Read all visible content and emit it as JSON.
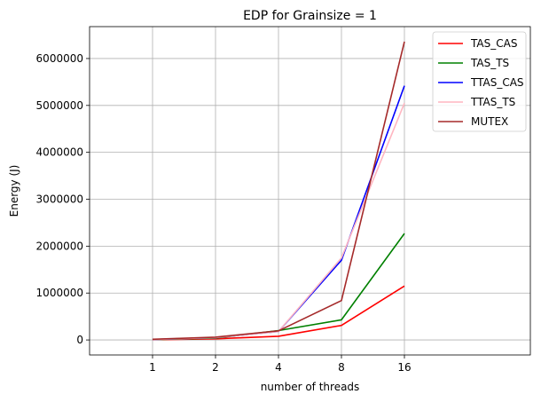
{
  "chart_data": {
    "type": "line",
    "title": "EDP for Grainsize = 1",
    "xlabel": "number of threads",
    "ylabel": "Energy (J)",
    "categories": [
      "1",
      "2",
      "4",
      "8",
      "16"
    ],
    "y_ticks": [
      "0",
      "1000000",
      "2000000",
      "3000000",
      "4000000",
      "5000000",
      "6000000"
    ],
    "ylim": [
      -320000,
      6680000
    ],
    "grid": true,
    "legend_position": "top-right",
    "series": [
      {
        "name": "TAS_CAS",
        "color": "#ff0000",
        "values": [
          5000,
          25000,
          80000,
          310000,
          1150000
        ]
      },
      {
        "name": "TAS_TS",
        "color": "#008000",
        "values": [
          8000,
          40000,
          200000,
          430000,
          2270000
        ]
      },
      {
        "name": "TTAS_CAS",
        "color": "#0000ff",
        "values": [
          10000,
          50000,
          180000,
          1700000,
          5420000
        ]
      },
      {
        "name": "TTAS_TS",
        "color": "#ffb6c1",
        "values": [
          10000,
          50000,
          180000,
          1750000,
          5050000
        ]
      },
      {
        "name": "MUTEX",
        "color": "#a52a2a",
        "values": [
          15000,
          60000,
          195000,
          840000,
          6360000
        ]
      }
    ]
  }
}
